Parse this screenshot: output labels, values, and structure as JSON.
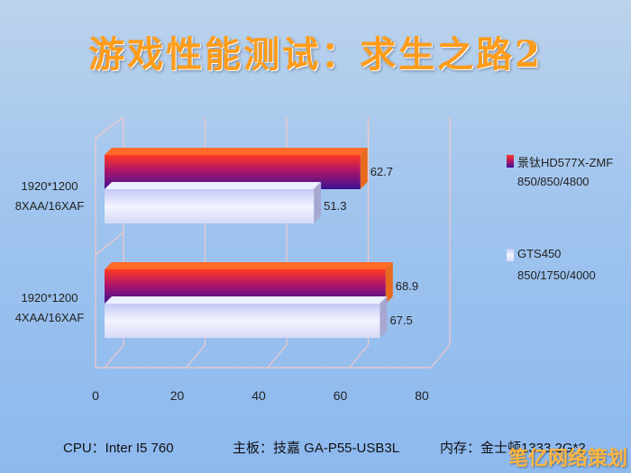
{
  "chart_data": {
    "type": "bar",
    "orientation": "horizontal",
    "title": "游戏性能测试：求生之路2",
    "categories": [
      "1920*1200\n8XAA/16XAF",
      "1920*1200\n4XAA/16XAF"
    ],
    "series": [
      {
        "name": "景钛HD577X-ZMF",
        "subtitle": "850/850/4800",
        "values": [
          62.7,
          68.9
        ],
        "color": "#e0242a"
      },
      {
        "name": "GTS450",
        "subtitle": "850/1750/4000",
        "values": [
          51.3,
          67.5
        ],
        "color": "#d9ddf7"
      }
    ],
    "xlim": [
      0,
      80
    ],
    "xticks": [
      "0",
      "20",
      "40",
      "60",
      "80"
    ],
    "grid": true,
    "legend": "right"
  },
  "footer": {
    "cpu": "CPU：Inter I5 760",
    "board": "主板：技嘉 GA-P55-USB3L",
    "memory": "内存：金士顿1333 2G*2"
  },
  "watermark": "笔亿网络策划"
}
